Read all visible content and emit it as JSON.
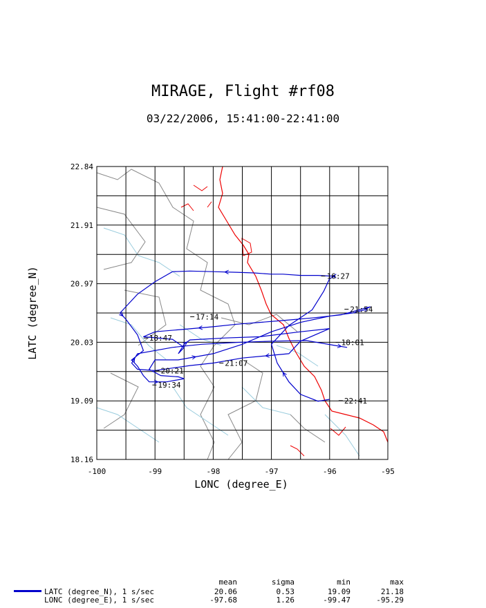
{
  "chart_data": {
    "type": "line",
    "title": "MIRAGE, Flight #rf08",
    "subtitle": "03/22/2006, 15:41:00-22:41:00",
    "xlabel": "LONC (degree_E)",
    "ylabel": "LATC (degree_N)",
    "xlim": [
      -100,
      -95
    ],
    "ylim": [
      18.16,
      22.84
    ],
    "x_ticks": [
      "-100",
      "-99",
      "-98",
      "-97",
      "-96",
      "-95"
    ],
    "y_ticks": [
      "18.16",
      "19.09",
      "20.03",
      "20.97",
      "21.91",
      "22.84"
    ],
    "grid": true,
    "series": [
      {
        "color": "#0000cc",
        "x": [
          -96.0,
          -96.2,
          -96.5,
          -96.7,
          -96.9,
          -97.0,
          -96.7,
          -96.3,
          -96.1,
          -96.0,
          -95.9,
          -96.0,
          -96.2,
          -96.5,
          -96.8,
          -97.0,
          -97.3,
          -97.6,
          -98.0,
          -98.4,
          -98.7,
          -99.0,
          -99.3,
          -99.5,
          -99.6,
          -99.5,
          -99.3,
          -99.2,
          -99.4,
          -99.3,
          -99.2,
          -99.1,
          -98.8,
          -98.5,
          -98.6,
          -98.9,
          -99.1,
          -99.0,
          -98.6,
          -98.0,
          -97.5,
          -97.0,
          -96.5,
          -96.0,
          -95.6,
          -95.4,
          -95.3,
          -95.8,
          -96.3,
          -96.8,
          -97.2,
          -97.6,
          -98.0,
          -98.5,
          -99.0,
          -99.2,
          -98.7,
          -98.5,
          -98.6,
          -98.5,
          -98.4,
          -97.8,
          -97.2,
          -96.5,
          -96.0,
          -96.5,
          -96.7,
          -97.5,
          -98.0,
          -98.4,
          -98.7,
          -99.0,
          -99.3,
          -99.4,
          -99.3,
          -98.7,
          -98.2,
          -97.6,
          -97.0,
          -96.4,
          -95.9,
          -95.7
        ],
        "y": [
          19.12,
          19.09,
          19.2,
          19.4,
          19.7,
          20.0,
          20.3,
          20.55,
          20.85,
          21.05,
          21.09,
          21.09,
          21.1,
          21.1,
          21.12,
          21.12,
          21.14,
          21.15,
          21.16,
          21.17,
          21.16,
          21.0,
          20.8,
          20.6,
          20.5,
          20.4,
          20.15,
          19.9,
          19.75,
          19.65,
          19.5,
          19.4,
          19.4,
          19.45,
          19.48,
          19.5,
          19.6,
          19.75,
          19.75,
          19.85,
          20.0,
          20.2,
          20.35,
          20.45,
          20.5,
          20.55,
          20.6,
          20.47,
          20.42,
          20.38,
          20.35,
          20.32,
          20.28,
          20.24,
          20.2,
          20.12,
          20.08,
          19.95,
          19.85,
          20.0,
          20.07,
          20.1,
          20.12,
          20.2,
          20.25,
          20.05,
          19.85,
          19.78,
          19.7,
          19.66,
          19.62,
          19.58,
          19.6,
          19.7,
          19.85,
          19.95,
          20.0,
          20.03,
          20.05,
          20.06,
          19.98,
          19.95
        ]
      }
    ],
    "annotations": [
      {
        "text": "16:27",
        "x": -96.05,
        "y": 21.09
      },
      {
        "text": "21:54",
        "x": -95.65,
        "y": 20.56
      },
      {
        "text": "17:14",
        "x": -98.3,
        "y": 20.44
      },
      {
        "text": "18:47",
        "x": -99.1,
        "y": 20.1
      },
      {
        "text": "18:01",
        "x": -95.8,
        "y": 20.03
      },
      {
        "text": "21:07",
        "x": -97.8,
        "y": 19.7
      },
      {
        "text": "20:21",
        "x": -98.9,
        "y": 19.58
      },
      {
        "text": "19:34",
        "x": -98.95,
        "y": 19.35
      },
      {
        "text": "22:41",
        "x": -95.75,
        "y": 19.1
      }
    ]
  },
  "stats": {
    "headers": [
      "mean",
      "sigma",
      "min",
      "max"
    ],
    "rows": [
      {
        "label": "LATC (degree_N), 1 s/sec",
        "mean": "20.06",
        "sigma": "0.53",
        "min": "19.09",
        "max": "21.18"
      },
      {
        "label": "LONC (degree_E), 1 s/sec",
        "mean": "-97.68",
        "sigma": "1.26",
        "min": "-99.47",
        "max": "-95.29"
      }
    ]
  }
}
